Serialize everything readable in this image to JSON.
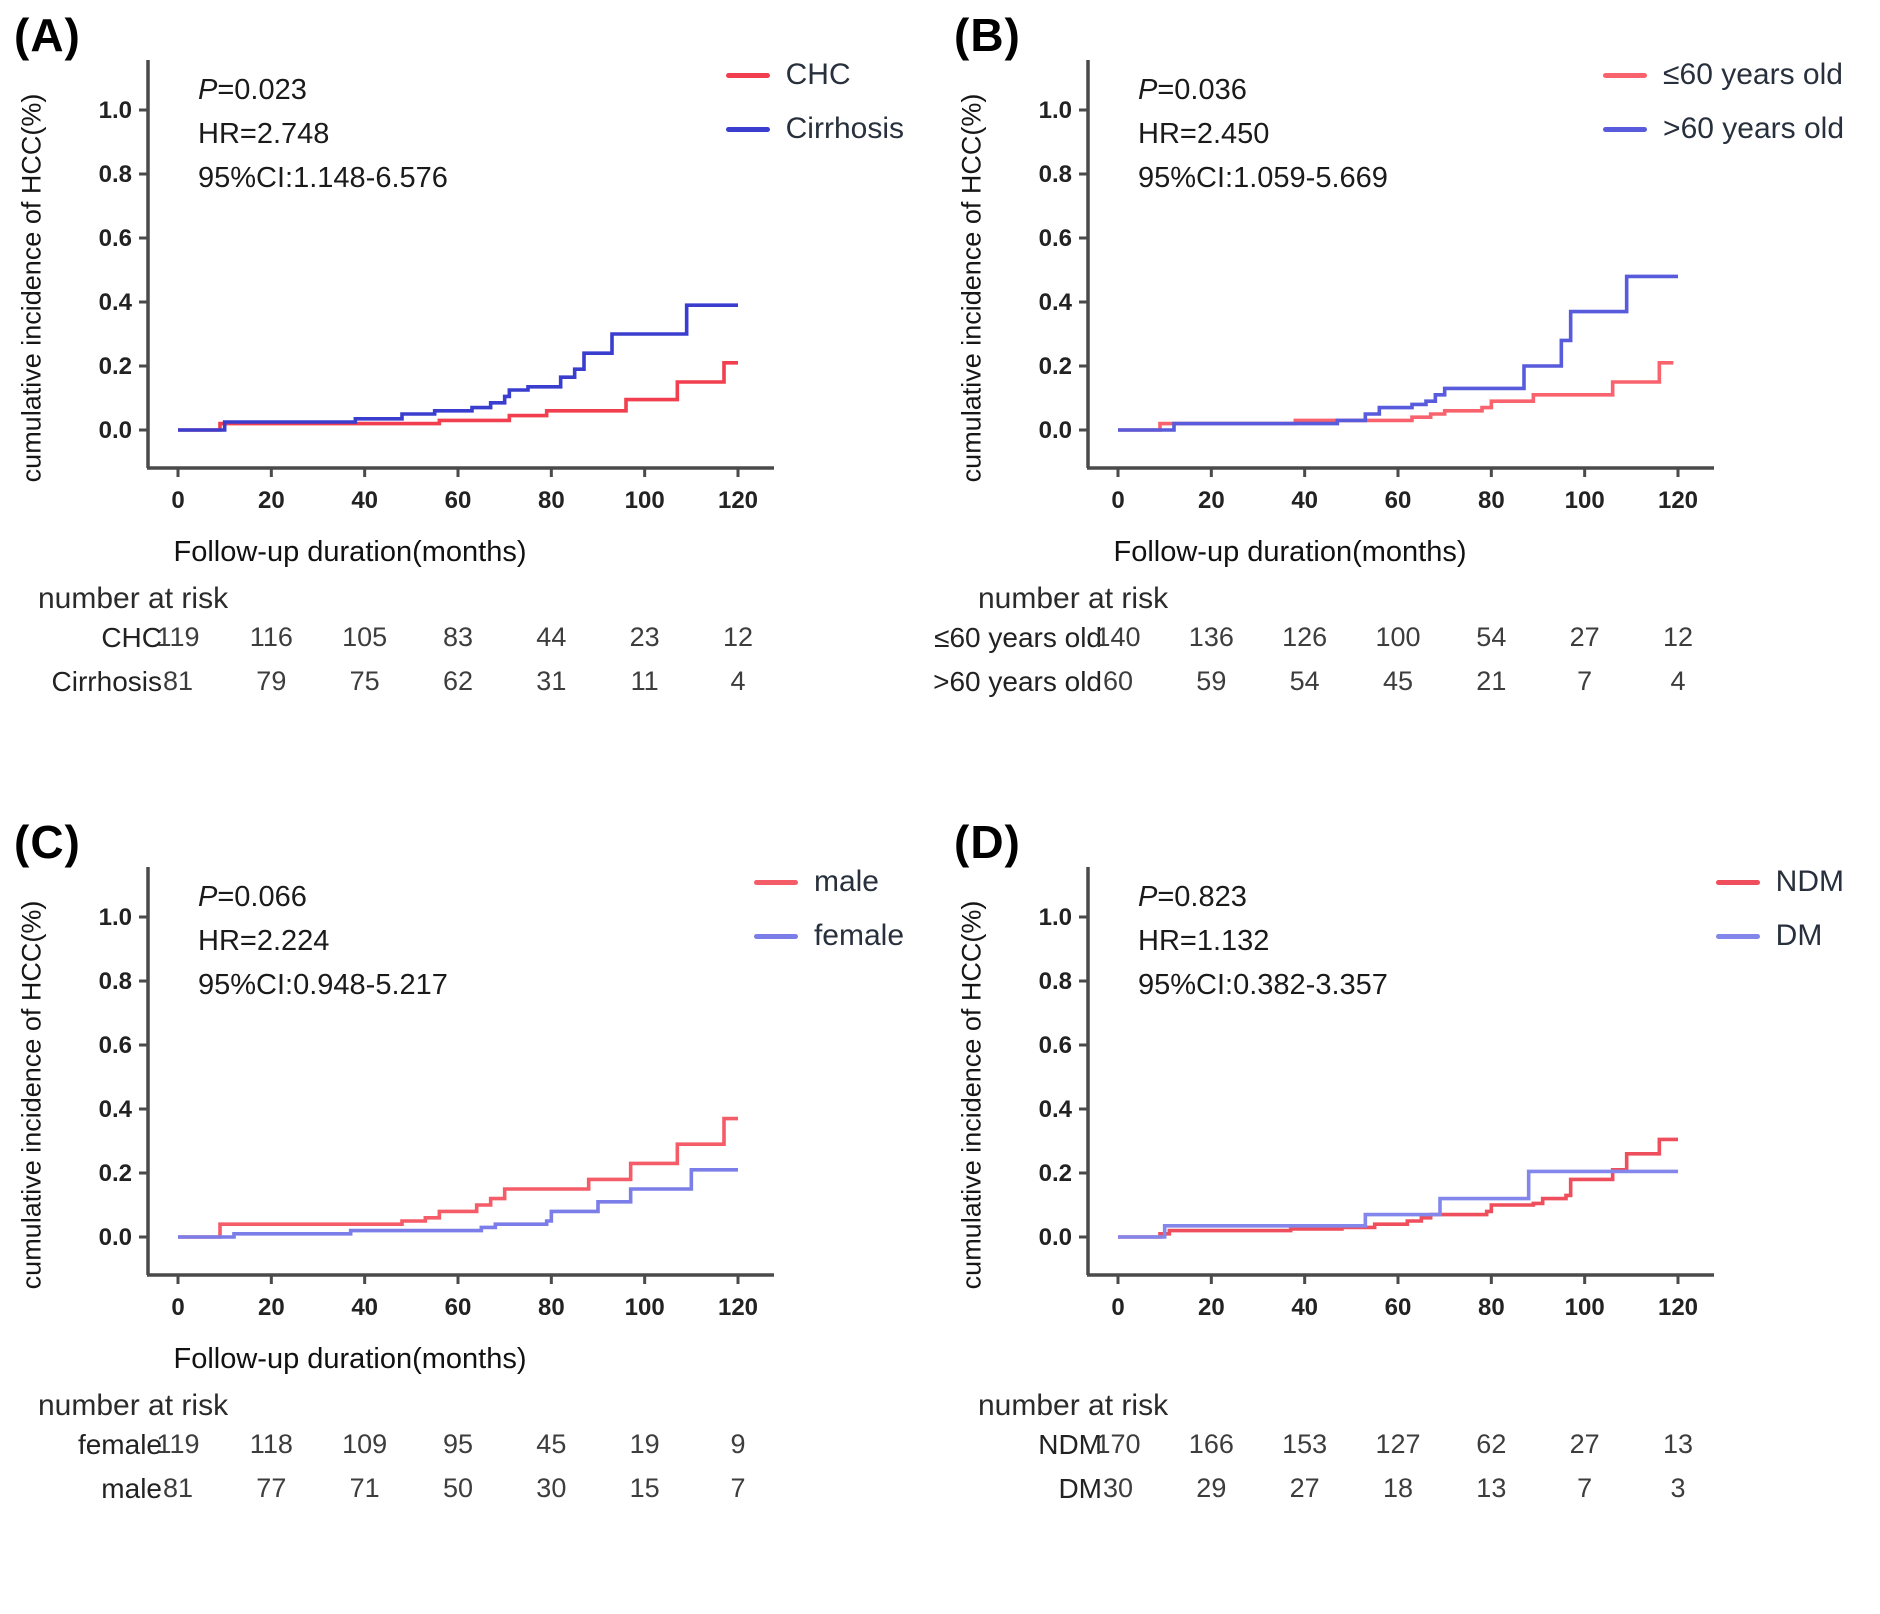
{
  "figure_title": "Cumulative incidence of HCC Kaplan-Meier panels",
  "axis_color": "#4a4a4a",
  "chart_data": [
    {
      "panel": "(A)",
      "type": "line",
      "subtype": "kaplan-meier-step",
      "stats": {
        "p": "P=0.023",
        "hr": "HR=2.748",
        "ci": "95%CI:1.148-6.576"
      },
      "ylabel": "cumulative incidence of HCC(%)",
      "xlabel": "Follow-up duration(months)",
      "xticks": [
        0,
        20,
        40,
        60,
        80,
        100,
        120
      ],
      "yticks": [
        0.0,
        0.2,
        0.4,
        0.6,
        0.8,
        1.0
      ],
      "xlim": [
        0,
        130
      ],
      "ylim": [
        0,
        1.05
      ],
      "grid": false,
      "legend_position": "top-right",
      "series": [
        {
          "name": "CHC",
          "color": "#f23f4f",
          "points": [
            [
              0,
              0
            ],
            [
              9,
              0.02
            ],
            [
              56,
              0.03
            ],
            [
              71,
              0.045
            ],
            [
              79,
              0.06
            ],
            [
              96,
              0.095
            ],
            [
              107,
              0.15
            ],
            [
              117,
              0.21
            ],
            [
              120,
              0.21
            ]
          ]
        },
        {
          "name": "Cirrhosis",
          "color": "#3a3ecf",
          "points": [
            [
              0,
              0
            ],
            [
              10,
              0.025
            ],
            [
              38,
              0.035
            ],
            [
              48,
              0.05
            ],
            [
              55,
              0.06
            ],
            [
              63,
              0.07
            ],
            [
              67,
              0.085
            ],
            [
              70,
              0.105
            ],
            [
              71,
              0.125
            ],
            [
              75,
              0.135
            ],
            [
              82,
              0.165
            ],
            [
              85,
              0.19
            ],
            [
              87,
              0.24
            ],
            [
              93,
              0.3
            ],
            [
              109,
              0.39
            ],
            [
              120,
              0.39
            ]
          ]
        }
      ],
      "number_at_risk": {
        "title": "number at risk",
        "timepoints": [
          0,
          20,
          40,
          60,
          80,
          100,
          120
        ],
        "rows": [
          {
            "label": "CHC",
            "values": [
              119,
              116,
              105,
              83,
              44,
              23,
              12
            ]
          },
          {
            "label": "Cirrhosis",
            "values": [
              81,
              79,
              75,
              62,
              31,
              11,
              4
            ]
          }
        ]
      }
    },
    {
      "panel": "(B)",
      "type": "line",
      "subtype": "kaplan-meier-step",
      "stats": {
        "p": "P=0.036",
        "hr": "HR=2.450",
        "ci": "95%CI:1.059-5.669"
      },
      "ylabel": "cumulative incidence of HCC(%)",
      "xlabel": "Follow-up duration(months)",
      "xticks": [
        0,
        20,
        40,
        60,
        80,
        100,
        120
      ],
      "yticks": [
        0.0,
        0.2,
        0.4,
        0.6,
        0.8,
        1.0
      ],
      "xlim": [
        0,
        130
      ],
      "ylim": [
        0,
        1.05
      ],
      "grid": false,
      "legend_position": "top-right",
      "series": [
        {
          "name": "≤60 years old",
          "color": "#f8636e",
          "points": [
            [
              0,
              0
            ],
            [
              9,
              0.02
            ],
            [
              38,
              0.03
            ],
            [
              63,
              0.04
            ],
            [
              67,
              0.05
            ],
            [
              70,
              0.06
            ],
            [
              78,
              0.07
            ],
            [
              80,
              0.09
            ],
            [
              89,
              0.11
            ],
            [
              106,
              0.15
            ],
            [
              116,
              0.21
            ],
            [
              119,
              0.21
            ]
          ]
        },
        {
          "name": ">60 years old",
          "color": "#585bdc",
          "points": [
            [
              0,
              0
            ],
            [
              12,
              0.02
            ],
            [
              47,
              0.03
            ],
            [
              53,
              0.05
            ],
            [
              56,
              0.07
            ],
            [
              63,
              0.08
            ],
            [
              66,
              0.09
            ],
            [
              68,
              0.11
            ],
            [
              70,
              0.13
            ],
            [
              87,
              0.2
            ],
            [
              95,
              0.28
            ],
            [
              97,
              0.37
            ],
            [
              109,
              0.48
            ],
            [
              120,
              0.48
            ]
          ]
        }
      ],
      "number_at_risk": {
        "title": "number at risk",
        "timepoints": [
          0,
          20,
          40,
          60,
          80,
          100,
          120
        ],
        "rows": [
          {
            "label": "≤60 years old",
            "values": [
              140,
              136,
              126,
              100,
              54,
              27,
              12
            ]
          },
          {
            "label": ">60 years old",
            "values": [
              60,
              59,
              54,
              45,
              21,
              7,
              4
            ]
          }
        ]
      }
    },
    {
      "panel": "(C)",
      "type": "line",
      "subtype": "kaplan-meier-step",
      "stats": {
        "p": "P=0.066",
        "hr": "HR=2.224",
        "ci": "95%CI:0.948-5.217"
      },
      "ylabel": "cumulative incidence of HCC(%)",
      "xlabel": "Follow-up duration(months)",
      "xticks": [
        0,
        20,
        40,
        60,
        80,
        100,
        120
      ],
      "yticks": [
        0.0,
        0.2,
        0.4,
        0.6,
        0.8,
        1.0
      ],
      "xlim": [
        0,
        130
      ],
      "ylim": [
        0,
        1.05
      ],
      "grid": false,
      "legend_position": "top-right",
      "series": [
        {
          "name": "male",
          "color": "#f45d68",
          "points": [
            [
              0,
              0
            ],
            [
              9,
              0.04
            ],
            [
              48,
              0.05
            ],
            [
              53,
              0.06
            ],
            [
              56,
              0.08
            ],
            [
              64,
              0.1
            ],
            [
              67,
              0.12
            ],
            [
              70,
              0.15
            ],
            [
              88,
              0.18
            ],
            [
              97,
              0.23
            ],
            [
              107,
              0.29
            ],
            [
              117,
              0.37
            ],
            [
              120,
              0.37
            ]
          ]
        },
        {
          "name": "female",
          "color": "#7b7de8",
          "points": [
            [
              0,
              0
            ],
            [
              12,
              0.01
            ],
            [
              37,
              0.02
            ],
            [
              65,
              0.03
            ],
            [
              68,
              0.04
            ],
            [
              79,
              0.05
            ],
            [
              80,
              0.08
            ],
            [
              90,
              0.11
            ],
            [
              97,
              0.15
            ],
            [
              110,
              0.21
            ],
            [
              120,
              0.21
            ]
          ]
        }
      ],
      "number_at_risk": {
        "title": "number at risk",
        "timepoints": [
          0,
          20,
          40,
          60,
          80,
          100,
          120
        ],
        "rows": [
          {
            "label": "female",
            "values": [
              119,
              118,
              109,
              95,
              45,
              19,
              9
            ]
          },
          {
            "label": "male",
            "values": [
              81,
              77,
              71,
              50,
              30,
              15,
              7
            ]
          }
        ]
      }
    },
    {
      "panel": "(D)",
      "type": "line",
      "subtype": "kaplan-meier-step",
      "stats": {
        "p": "P=0.823",
        "hr": "HR=1.132",
        "ci": "95%CI:0.382-3.357"
      },
      "ylabel": "cumulative incidence of HCC(%)",
      "xlabel": "",
      "xticks": [
        0,
        20,
        40,
        60,
        80,
        100,
        120
      ],
      "yticks": [
        0.0,
        0.2,
        0.4,
        0.6,
        0.8,
        1.0
      ],
      "xlim": [
        0,
        130
      ],
      "ylim": [
        0,
        1.05
      ],
      "grid": false,
      "legend_position": "top-right",
      "series": [
        {
          "name": "NDM",
          "color": "#ef4f5c",
          "points": [
            [
              0,
              0
            ],
            [
              9,
              0.01
            ],
            [
              11,
              0.02
            ],
            [
              37,
              0.025
            ],
            [
              48,
              0.03
            ],
            [
              55,
              0.04
            ],
            [
              62,
              0.05
            ],
            [
              65,
              0.06
            ],
            [
              67,
              0.07
            ],
            [
              79,
              0.08
            ],
            [
              80,
              0.1
            ],
            [
              89,
              0.105
            ],
            [
              91,
              0.12
            ],
            [
              96,
              0.13
            ],
            [
              97,
              0.18
            ],
            [
              106,
              0.21
            ],
            [
              109,
              0.26
            ],
            [
              116,
              0.305
            ],
            [
              120,
              0.305
            ]
          ]
        },
        {
          "name": "DM",
          "color": "#8387ec",
          "points": [
            [
              0,
              0
            ],
            [
              10,
              0.035
            ],
            [
              53,
              0.07
            ],
            [
              69,
              0.12
            ],
            [
              88,
              0.205
            ],
            [
              120,
              0.205
            ]
          ]
        }
      ],
      "number_at_risk": {
        "title": "number at risk",
        "timepoints": [
          0,
          20,
          40,
          60,
          80,
          100,
          120
        ],
        "rows": [
          {
            "label": "NDM",
            "values": [
              170,
              166,
              153,
              127,
              62,
              27,
              13
            ]
          },
          {
            "label": "DM",
            "values": [
              30,
              29,
              27,
              18,
              13,
              7,
              3
            ]
          }
        ]
      }
    }
  ]
}
